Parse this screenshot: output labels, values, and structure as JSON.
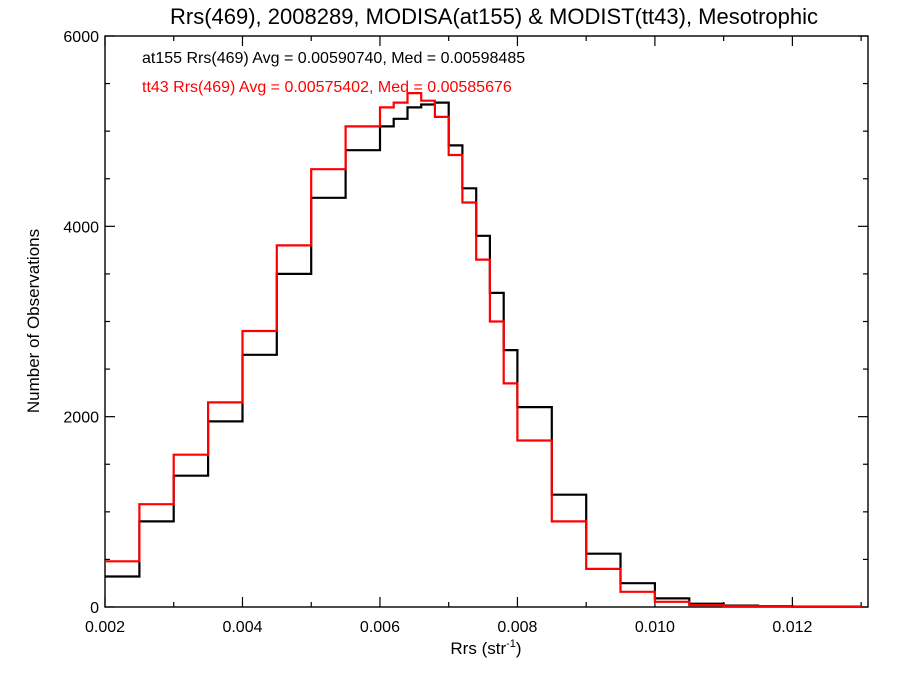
{
  "chart_data": {
    "type": "line",
    "title": "Rrs(469), 2008289, MODISA(at155) & MODIST(tt43), Mesotrophic",
    "xlabel_main": "Rrs (str",
    "xlabel_sup": "-1",
    "xlabel_close": ")",
    "ylabel": "Number of Observations",
    "xlim": [
      0.002,
      0.0131
    ],
    "ylim": [
      0,
      6000
    ],
    "x_ticks": [
      "0.002",
      "0.004",
      "0.006",
      "0.008",
      "0.010",
      "0.012"
    ],
    "y_ticks": [
      "0",
      "2000",
      "4000",
      "6000"
    ],
    "grid": false,
    "legend_position": "top-left",
    "series": [
      {
        "name": "at155",
        "label": "at155 Rrs(469) Avg = 0.00590740, Med = 0.00598485",
        "color": "#000000",
        "x": [
          0.002,
          0.0025,
          0.003,
          0.0035,
          0.004,
          0.0045,
          0.005,
          0.0055,
          0.006,
          0.0062,
          0.0064,
          0.0066,
          0.0068,
          0.007,
          0.0072,
          0.0074,
          0.0076,
          0.0078,
          0.008,
          0.0085,
          0.009,
          0.0095,
          0.01,
          0.0105,
          0.011,
          0.0115,
          0.012,
          0.013
        ],
        "values": [
          320,
          900,
          1380,
          1950,
          2650,
          3500,
          4300,
          4800,
          5050,
          5130,
          5250,
          5280,
          5300,
          4850,
          4400,
          3900,
          3300,
          2700,
          2100,
          1180,
          560,
          250,
          90,
          35,
          15,
          8,
          4,
          2
        ]
      },
      {
        "name": "tt43",
        "label": "tt43 Rrs(469) Avg = 0.00575402, Med = 0.00585676",
        "color": "#ff0000",
        "x": [
          0.002,
          0.0025,
          0.003,
          0.0035,
          0.004,
          0.0045,
          0.005,
          0.0055,
          0.006,
          0.0062,
          0.0064,
          0.0066,
          0.0068,
          0.007,
          0.0072,
          0.0074,
          0.0076,
          0.0078,
          0.008,
          0.0085,
          0.009,
          0.0095,
          0.01,
          0.0105,
          0.011,
          0.0115,
          0.012,
          0.013
        ],
        "values": [
          480,
          1080,
          1600,
          2150,
          2900,
          3800,
          4600,
          5050,
          5250,
          5300,
          5400,
          5320,
          5150,
          4750,
          4250,
          3650,
          3000,
          2350,
          1750,
          900,
          400,
          160,
          55,
          20,
          8,
          4,
          2,
          1
        ]
      }
    ]
  }
}
